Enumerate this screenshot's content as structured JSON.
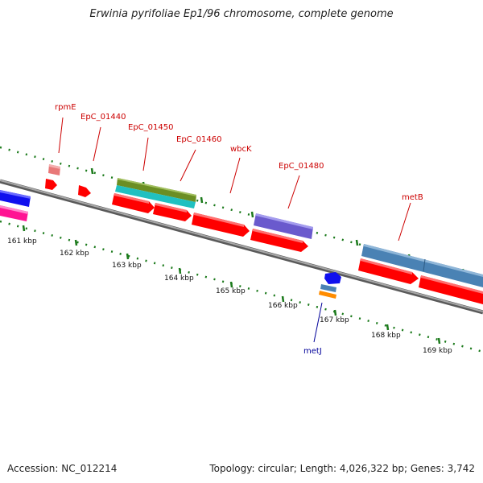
{
  "title": "Erwinia pyrifoliae Ep1/96 chromosome, complete genome",
  "footer": {
    "accession": "Accession: NC_012214",
    "summary": "Topology: circular; Length: 4,026,322 bp; Genes: 3,742"
  },
  "colors": {
    "background": "#ffffff",
    "backbone": "#808080",
    "tick_mark": "#1b7a1b",
    "label_red": "#cc0000",
    "label_blue": "#000099",
    "cds_red": "#ff0000",
    "rrna_pink": "#ff4da6",
    "trna_blue": "#1010ee",
    "steel_blue": "#4a82b4",
    "olive": "#6b8e23",
    "cyan": "#20c0c0",
    "purple": "#6a5acd",
    "salmon": "#e87878",
    "orange": "#ff8c00"
  },
  "ticks": [
    "161 kbp",
    "162 kbp",
    "163 kbp",
    "164 kbp",
    "165 kbp",
    "166 kbp",
    "167 kbp",
    "168 kbp",
    "169 kbp"
  ],
  "gene_labels": [
    "rpmE",
    "EpC_01440",
    "EpC_01450",
    "EpC_01460",
    "wbcK",
    "EpC_01480",
    "metB",
    "metJ"
  ]
}
